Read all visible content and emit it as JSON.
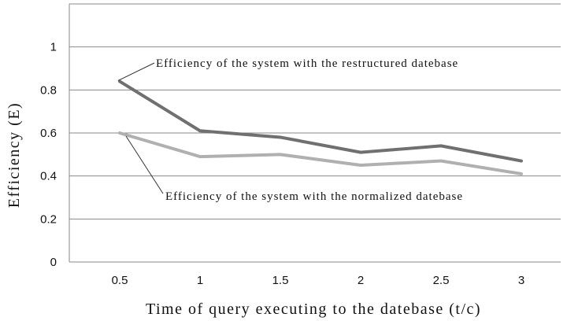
{
  "chart_data": {
    "type": "line",
    "title": "",
    "xlabel": "Time of query executing to the datebase (t/c)",
    "ylabel": "Efficiency (E)",
    "categories": [
      "0.5",
      "1",
      "1.5",
      "2",
      "2.5",
      "3"
    ],
    "yticks": [
      "0",
      "0.2",
      "0.4",
      "0.6",
      "0.8",
      "1"
    ],
    "ylim": [
      0,
      1.2
    ],
    "grid": true,
    "legend": "none",
    "series": [
      {
        "name": "Efficiency of the system with the restructured datebase",
        "values": [
          0.84,
          0.61,
          0.58,
          0.51,
          0.54,
          0.47
        ],
        "color": "#707070"
      },
      {
        "name": "Efficiency of the system with the normalized datebase",
        "values": [
          0.6,
          0.49,
          0.5,
          0.45,
          0.47,
          0.41
        ],
        "color": "#b0b0b0"
      }
    ],
    "annotations": [
      "Efficiency of the system with the restructured datebase",
      "Efficiency of the system with the normalized datebase"
    ]
  }
}
